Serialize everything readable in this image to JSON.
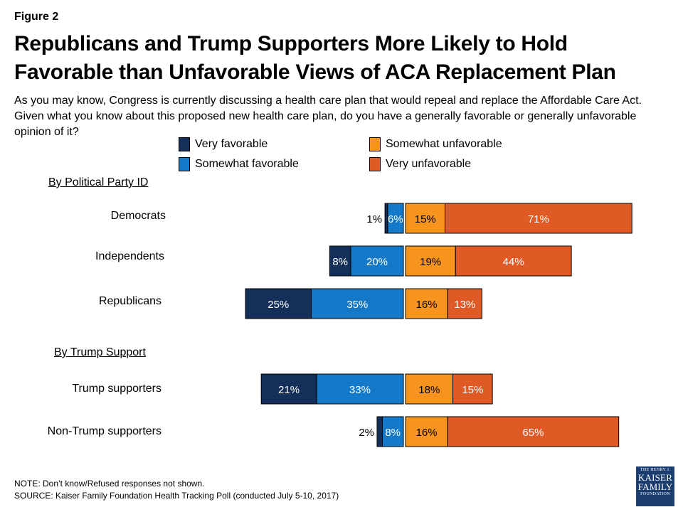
{
  "figure_label": "Figure 2",
  "title": "Republicans and Trump Supporters More Likely to Hold Favorable than Unfavorable Views of ACA Replacement Plan",
  "subtitle": "As you may know, Congress is currently discussing a health care plan that would repeal and replace the Affordable Care Act. Given what you know about this proposed new health care plan, do you have a generally favorable or generally unfavorable opinion of it?",
  "colors": {
    "very_favorable": "#14305a",
    "somewhat_favorable": "#1479c9",
    "somewhat_unfavorable": "#f7941d",
    "very_unfavorable": "#e05a26"
  },
  "chart_data": {
    "type": "bar",
    "orientation": "horizontal-diverging",
    "unit": "%",
    "series": [
      {
        "name": "Very favorable",
        "key": "very_favorable",
        "side": "left"
      },
      {
        "name": "Somewhat favorable",
        "key": "somewhat_favorable",
        "side": "left"
      },
      {
        "name": "Somewhat unfavorable",
        "key": "somewhat_unfavorable",
        "side": "right"
      },
      {
        "name": "Very unfavorable",
        "key": "very_unfavorable",
        "side": "right"
      }
    ],
    "groups": [
      {
        "header": "By Political Party ID",
        "rows": [
          {
            "label": "Democrats",
            "very_favorable": 1,
            "somewhat_favorable": 6,
            "somewhat_unfavorable": 15,
            "very_unfavorable": 71
          },
          {
            "label": "Independents",
            "very_favorable": 8,
            "somewhat_favorable": 20,
            "somewhat_unfavorable": 19,
            "very_unfavorable": 44
          },
          {
            "label": "Republicans",
            "very_favorable": 25,
            "somewhat_favorable": 35,
            "somewhat_unfavorable": 16,
            "very_unfavorable": 13
          }
        ]
      },
      {
        "header": "By Trump Support",
        "rows": [
          {
            "label": "Trump supporters",
            "very_favorable": 21,
            "somewhat_favorable": 33,
            "somewhat_unfavorable": 18,
            "very_unfavorable": 15
          },
          {
            "label": "Non-Trump supporters",
            "very_favorable": 2,
            "somewhat_favorable": 8,
            "somewhat_unfavorable": 16,
            "very_unfavorable": 65
          }
        ]
      }
    ]
  },
  "footer": {
    "note": "NOTE: Don’t know/Refused responses not shown.",
    "source": "SOURCE: Kaiser Family Foundation Health Tracking Poll (conducted July 5-10, 2017)"
  },
  "logo": {
    "line1": "THE HENRY J.",
    "line2": "KAISER",
    "line3": "FAMILY",
    "line4": "FOUNDATION"
  }
}
